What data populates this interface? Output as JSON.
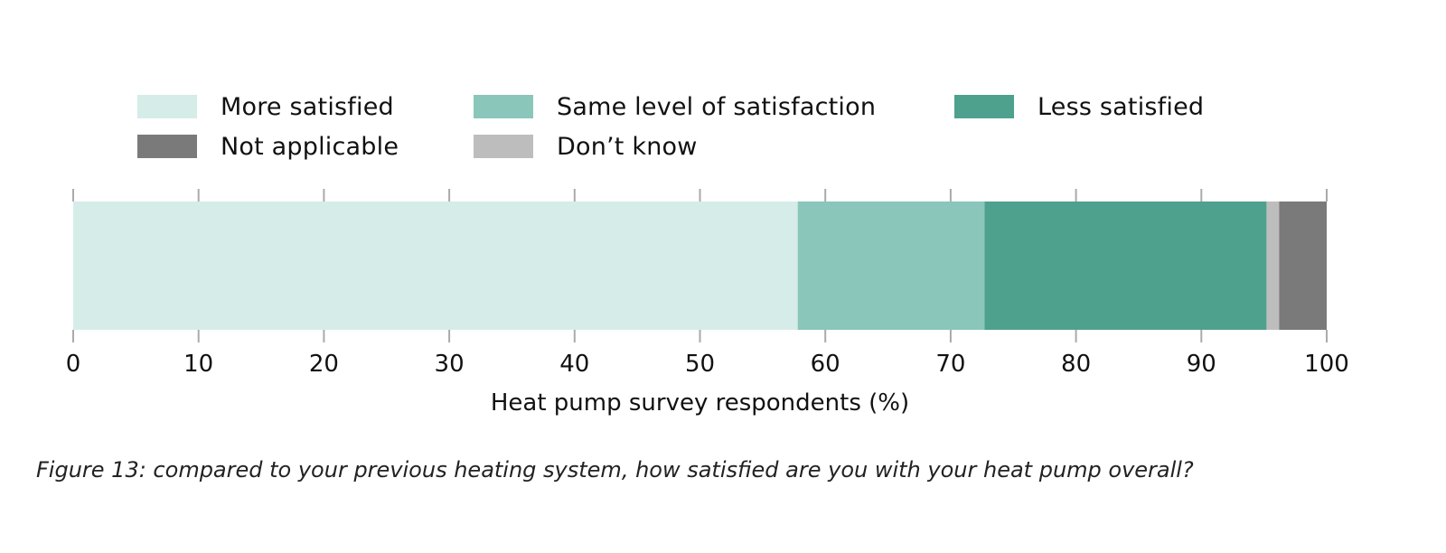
{
  "chart_data": {
    "type": "bar",
    "orientation": "horizontal",
    "stacked": true,
    "xlabel": "Heat pump survey respondents (%)",
    "ylabel": "",
    "xlim": [
      0,
      100
    ],
    "xticks": [
      "0",
      "10",
      "20",
      "30",
      "40",
      "50",
      "60",
      "70",
      "80",
      "90",
      "100"
    ],
    "grid": false,
    "legend_placement": "top",
    "series": [
      {
        "name": "More satisfied",
        "value": 57.8,
        "color": "#d6ece8"
      },
      {
        "name": "Same level of satisfaction",
        "value": 14.9,
        "color": "#8ac6b9"
      },
      {
        "name": "Less satisfied",
        "value": 22.5,
        "color": "#4ea18c"
      },
      {
        "name": "Don’t know",
        "value": 1.0,
        "color": "#bdbdbd"
      },
      {
        "name": "Not applicable",
        "value": 3.8,
        "color": "#7a7a7a"
      }
    ]
  },
  "caption": "Figure 13: compared to your previous heating system, how satisfied are you with your heat pump overall?"
}
